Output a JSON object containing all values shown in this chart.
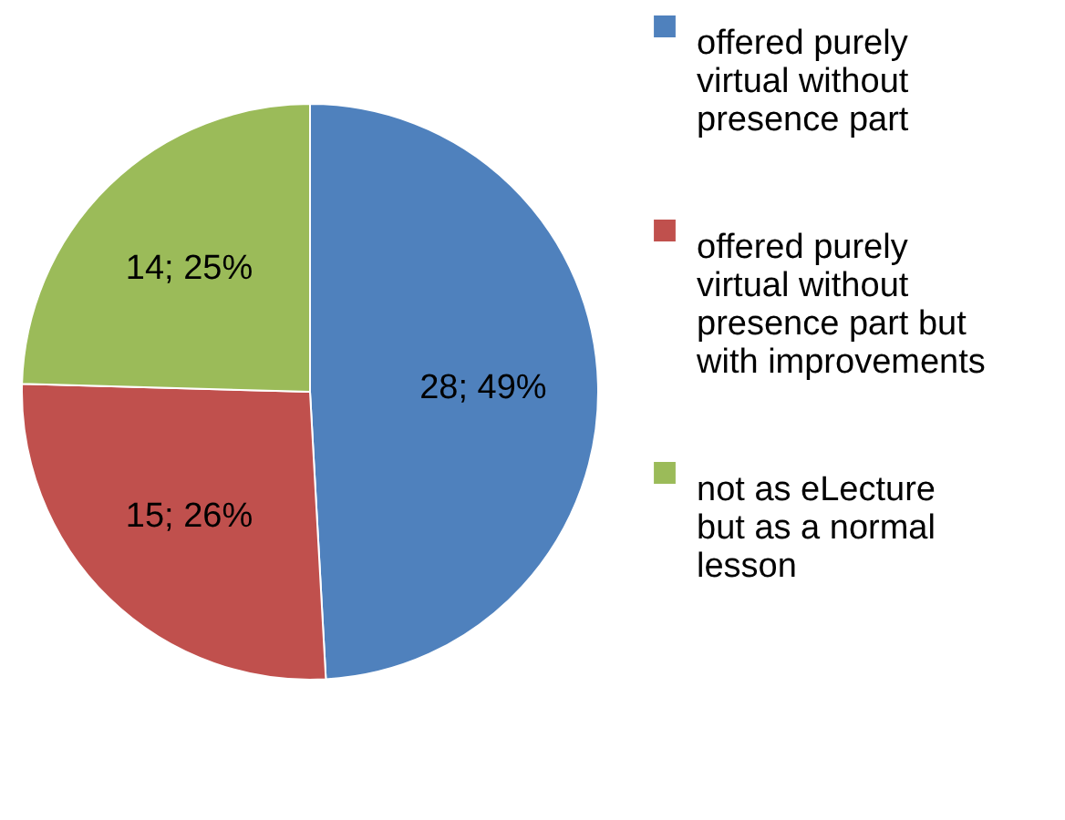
{
  "chart_data": {
    "type": "pie",
    "categories": [
      "offered purely virtual without presence part",
      "offered purely virtual without presence part but with improvements",
      "not as eLecture but as a normal lesson"
    ],
    "values": [
      28,
      15,
      14
    ],
    "colors": [
      "#4f81bd",
      "#c0504d",
      "#9bbb59"
    ],
    "value_labels": [
      "28; 49%",
      "15; 26%",
      "14; 25%"
    ],
    "legend": "right"
  }
}
